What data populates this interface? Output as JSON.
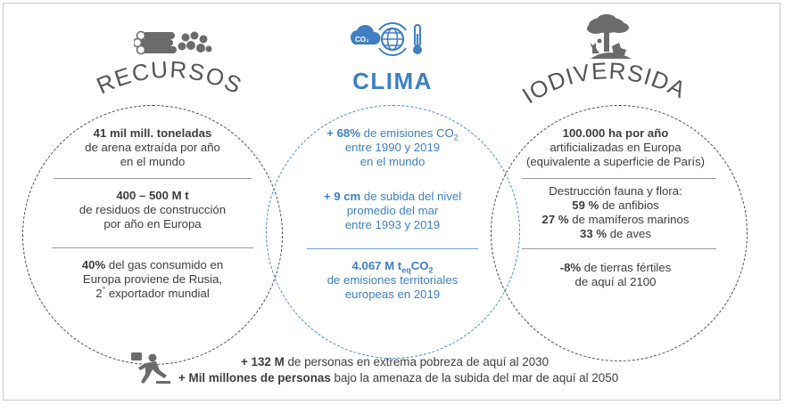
{
  "recursos": {
    "title": "RECURSOS",
    "b1": {
      "bold": "41 mil mill. toneladas",
      "l2": "de arena extraída por año",
      "l3": "en el mundo"
    },
    "b2": {
      "bold": "400 – 500 M t",
      "l2": "de residuos de construcción",
      "l3": "por año en Europa"
    },
    "b3": {
      "bold": "40%",
      "rest1": " del gas consumido en",
      "l2": "Europa proviene de Rusia,",
      "l3a": "2",
      "l3sup": "°",
      "l3b": " exportador mundial"
    }
  },
  "clima": {
    "title": "CLIMA",
    "icon_label": "CO₂",
    "b1": {
      "bold": "+ 68%",
      "rest1": " de emisiones CO",
      "sub": "2",
      "l2": "entre 1990 y 2019",
      "l3": "en el mundo"
    },
    "b2": {
      "bold": "+ 9 cm",
      "rest1": " de subida del nivel",
      "l2": "promedio del mar",
      "l3": "entre 1993 y 2019"
    },
    "b3": {
      "bold": "4.067 M t",
      "sub": "eq",
      "bold2": "CO",
      "sub2": "2",
      "l2": "de emisiones territoriales",
      "l3": "europeas en 2019"
    }
  },
  "biodiversidad": {
    "title": "BIODIVERSIDAD",
    "b1": {
      "bold": "100.000 ha por año",
      "l2": "artificializadas en Europa",
      "l3": "(equivalente a superficie de París)"
    },
    "b2": {
      "l1": "Destrucción fauna y flora:",
      "p1": "59 %",
      "r1": " de anfibios",
      "p2": "27 %",
      "r2": " de mamíferos marinos",
      "p3": "33 %",
      "r3": " de aves"
    },
    "b3": {
      "bold": "-8%",
      "rest1": " de tierras fértiles",
      "l2": "de aquí al 2100"
    }
  },
  "bottom": {
    "l1_bold": "+ 132 M",
    "l1_rest": " de personas en extrema pobreza de aquí al 2030",
    "l2_bold": "+ Mil millones de personas",
    "l2_rest": " bajo la amenaza de la subida del mar de aquí al 2050"
  },
  "colors": {
    "dark": "#3d3d3d",
    "blue": "#3f7fc2",
    "grey_icon": "#6b6b6b"
  },
  "icons": [
    "logs-and-rocks-icon",
    "co2-globe-thermometer-icon",
    "tree-and-animals-icon",
    "person-falling-icon"
  ]
}
